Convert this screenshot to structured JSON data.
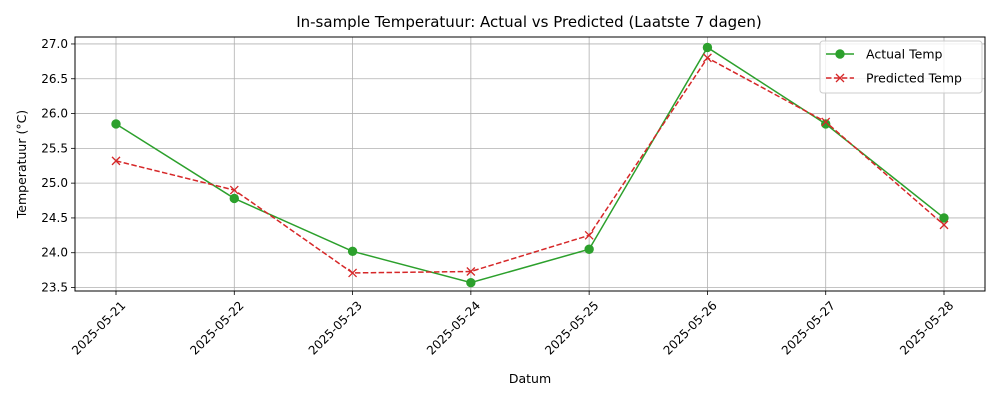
{
  "chart_data": {
    "type": "line",
    "title": "In-sample Temperatuur: Actual vs Predicted (Laatste 7 dagen)",
    "xlabel": "Datum",
    "ylabel": "Temperatuur (°C)",
    "categories": [
      "2025-05-21",
      "2025-05-22",
      "2025-05-23",
      "2025-05-24",
      "2025-05-25",
      "2025-05-26",
      "2025-05-27",
      "2025-05-28"
    ],
    "ylim": [
      23.45,
      27.1
    ],
    "yticks": [
      "23.5",
      "24.0",
      "24.5",
      "25.0",
      "25.5",
      "26.0",
      "26.5",
      "27.0"
    ],
    "grid": true,
    "legend_position": "top-right",
    "series": [
      {
        "name": "Actual Temp",
        "color": "#2ca02c",
        "marker": "circle",
        "linestyle": "solid",
        "values": [
          25.85,
          24.78,
          24.02,
          23.57,
          24.05,
          26.95,
          25.85,
          24.5
        ]
      },
      {
        "name": "Predicted Temp",
        "color": "#d62728",
        "marker": "x",
        "linestyle": "dashed",
        "values": [
          25.32,
          24.9,
          23.71,
          23.73,
          24.25,
          26.8,
          25.88,
          24.4
        ]
      }
    ]
  }
}
